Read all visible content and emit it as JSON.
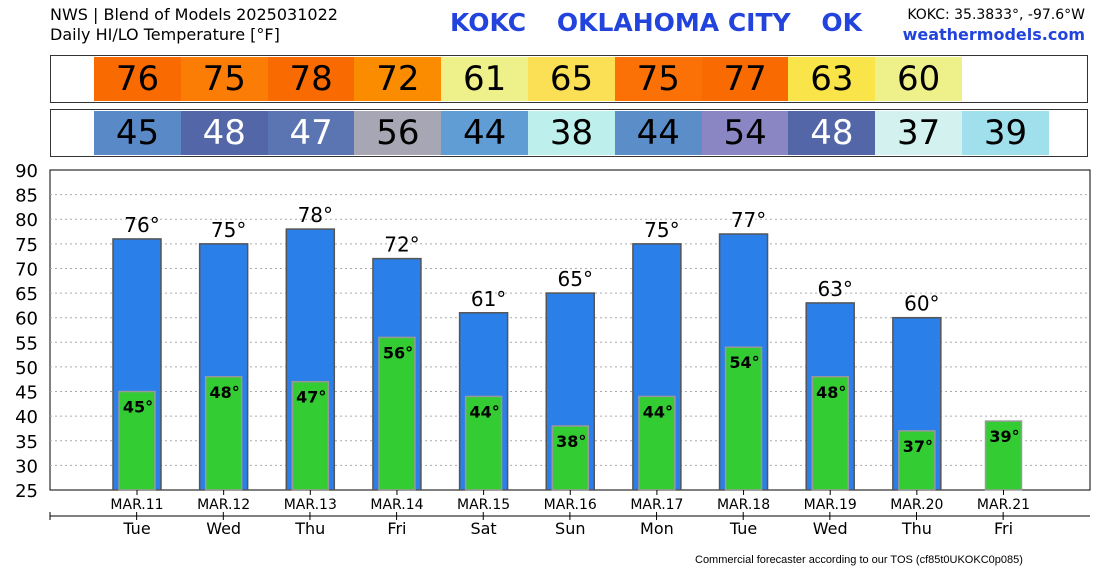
{
  "header": {
    "line1": "NWS | Blend of Models 2025031022",
    "line2": "Daily HI/LO Temperature [°F]",
    "station": "KOKC",
    "city": "OKLAHOMA CITY",
    "state": "OK",
    "coords": "KOKC: 35.3833°, -97.6°W",
    "site": "weathermodels.com"
  },
  "footer": "Commercial forecaster according to our TOS (cf85t0UKOKC0p085)",
  "colors": {
    "high_bar": "#2a7fe8",
    "low_bar": "#33cc33",
    "grid": "#aaaaaa"
  },
  "chart_data": {
    "type": "bar",
    "title": "",
    "xlabel": "",
    "ylabel": "",
    "ylim": [
      25,
      90
    ],
    "yticks": [
      25,
      30,
      35,
      40,
      45,
      50,
      55,
      60,
      65,
      70,
      75,
      80,
      85,
      90
    ],
    "grid": true,
    "categories": [
      "MAR.11",
      "MAR.12",
      "MAR.13",
      "MAR.14",
      "MAR.15",
      "MAR.16",
      "MAR.17",
      "MAR.18",
      "MAR.19",
      "MAR.20",
      "MAR.21"
    ],
    "weekdays": [
      "Tue",
      "Wed",
      "Thu",
      "Fri",
      "Sat",
      "Sun",
      "Mon",
      "Tue",
      "Wed",
      "Thu",
      "Fri"
    ],
    "series": [
      {
        "values": [
          76,
          75,
          78,
          72,
          61,
          65,
          75,
          77,
          63,
          60,
          null
        ]
      },
      {
        "values": [
          45,
          48,
          47,
          56,
          44,
          38,
          44,
          54,
          48,
          37,
          39
        ]
      }
    ],
    "high_labels": [
      "76°",
      "75°",
      "78°",
      "72°",
      "61°",
      "65°",
      "75°",
      "77°",
      "63°",
      "60°",
      ""
    ],
    "low_labels": [
      "45°",
      "48°",
      "47°",
      "56°",
      "44°",
      "38°",
      "44°",
      "54°",
      "48°",
      "37°",
      "39°"
    ],
    "high_strip_colors": [
      "#f96a00",
      "#fb7d06",
      "#f96a00",
      "#fb8c00",
      "#eef08a",
      "#fbdf55",
      "#fb7106",
      "#f96a00",
      "#f9e44a",
      "#eef08a",
      "#ffffff"
    ],
    "low_strip_colors": [
      "#5989c6",
      "#5266a8",
      "#5a75b2",
      "#a6a6b4",
      "#5f9dd4",
      "#bdf0ec",
      "#5b8ec9",
      "#8a86c4",
      "#5266a8",
      "#d2f1ef",
      "#9fe0ec"
    ],
    "low_strip_text_colors": [
      "#000000",
      "#ffffff",
      "#ffffff",
      "#000000",
      "#000000",
      "#000000",
      "#000000",
      "#000000",
      "#ffffff",
      "#000000",
      "#000000"
    ]
  }
}
